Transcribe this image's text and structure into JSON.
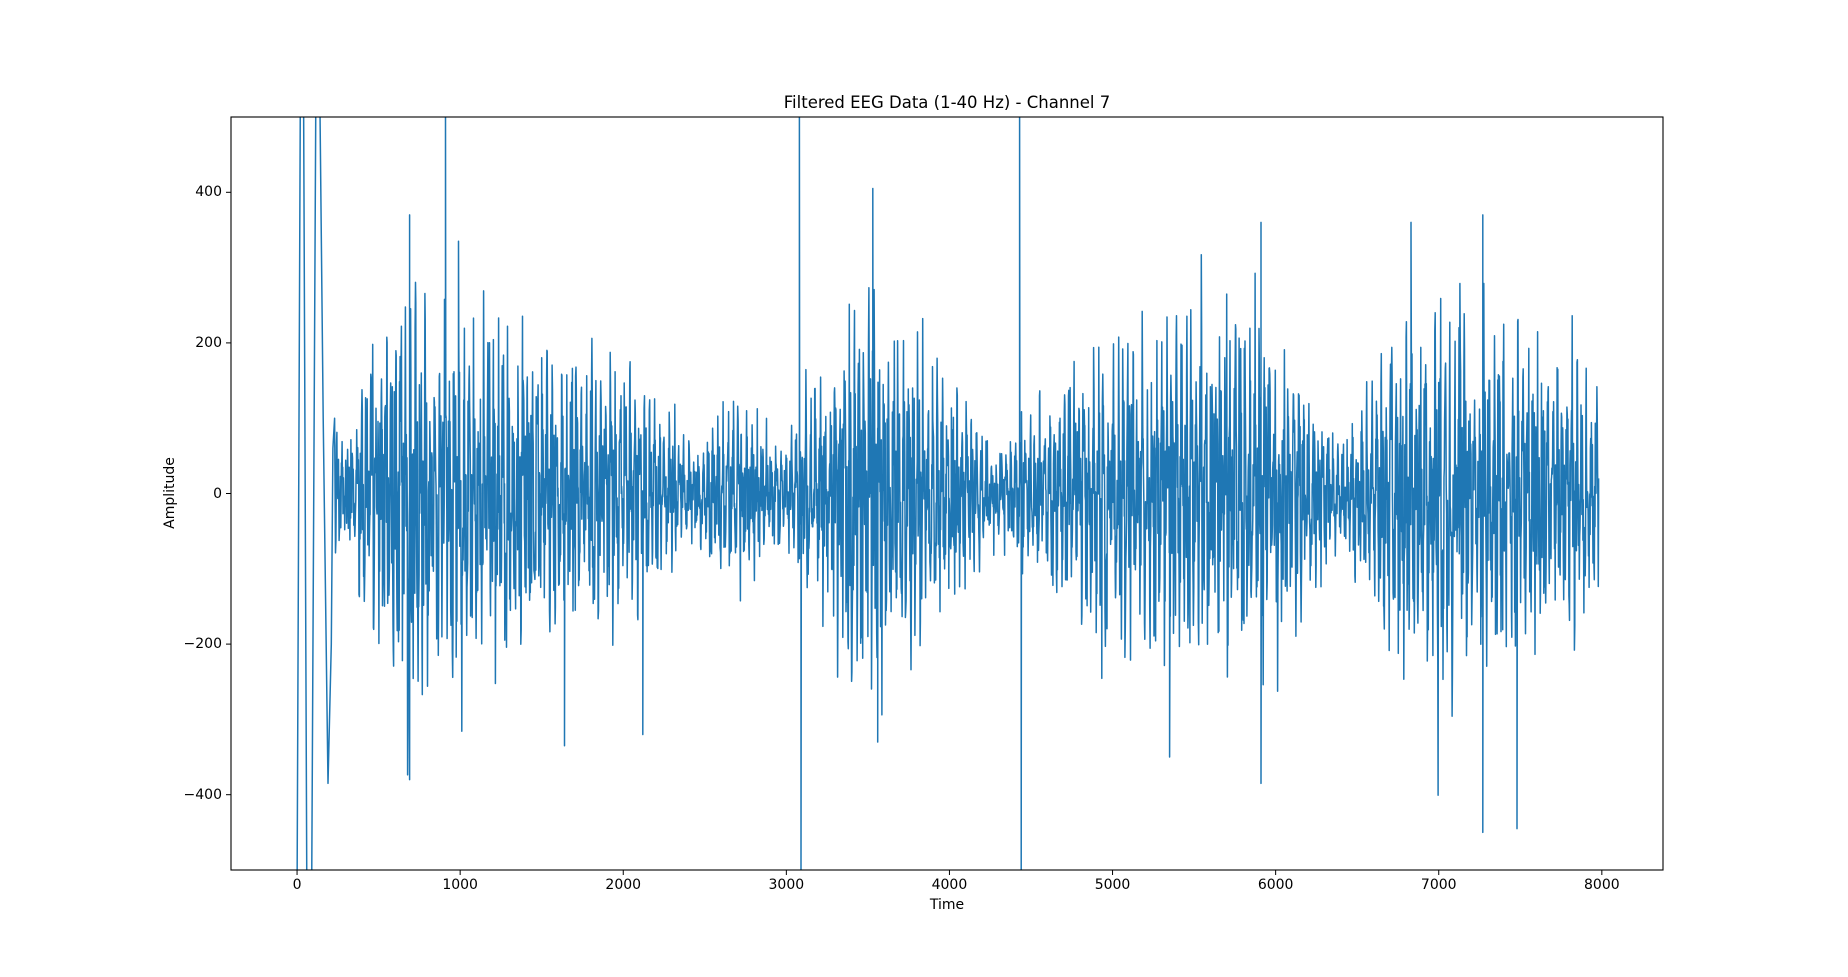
{
  "chart_data": {
    "type": "line",
    "title": "Filtered EEG Data (1-40 Hz) - Channel 7",
    "xlabel": "Time",
    "ylabel": "Amplitude",
    "xlim": [
      -405,
      8375
    ],
    "ylim": [
      -500,
      500
    ],
    "grid": false,
    "legend": null,
    "x_ticks": [
      0,
      1000,
      2000,
      3000,
      4000,
      5000,
      6000,
      7000,
      8000
    ],
    "x_tick_labels": [
      "0",
      "1000",
      "2000",
      "3000",
      "4000",
      "5000",
      "6000",
      "7000",
      "8000"
    ],
    "y_ticks": [
      400,
      200,
      0,
      -200,
      -400
    ],
    "y_tick_labels": [
      "400",
      "200",
      "0",
      "−200",
      "−400"
    ],
    "series": [
      {
        "name": "Channel 7",
        "color": "#1f77b4",
        "x_range": [
          0,
          7980
        ],
        "n_samples": 7980,
        "description": "Band-pass filtered EEG signal, dense oscillation mostly within about ±250, with bursts of higher amplitude",
        "typical_envelope": [
          {
            "x": 300,
            "amp": 80
          },
          {
            "x": 700,
            "amp": 280
          },
          {
            "x": 1000,
            "amp": 220
          },
          {
            "x": 1500,
            "amp": 180
          },
          {
            "x": 2000,
            "amp": 170
          },
          {
            "x": 2400,
            "amp": 60
          },
          {
            "x": 2700,
            "amp": 130
          },
          {
            "x": 3000,
            "amp": 60
          },
          {
            "x": 3400,
            "amp": 250
          },
          {
            "x": 3800,
            "amp": 200
          },
          {
            "x": 4300,
            "amp": 60
          },
          {
            "x": 4700,
            "amp": 150
          },
          {
            "x": 5200,
            "amp": 200
          },
          {
            "x": 5600,
            "amp": 230
          },
          {
            "x": 6000,
            "amp": 200
          },
          {
            "x": 6400,
            "amp": 60
          },
          {
            "x": 6800,
            "amp": 230
          },
          {
            "x": 7300,
            "amp": 230
          },
          {
            "x": 7980,
            "amp": 150
          }
        ],
        "notable_points": [
          {
            "x": 0,
            "y": -500,
            "note": "filter edge transient, clipped"
          },
          {
            "x": 40,
            "y": 500,
            "note": "filter edge transient, clipped"
          },
          {
            "x": 90,
            "y": -500,
            "note": "filter edge transient, clipped"
          },
          {
            "x": 140,
            "y": 500,
            "note": "filter edge transient, clipped"
          },
          {
            "x": 190,
            "y": -385
          },
          {
            "x": 690,
            "y": 370
          },
          {
            "x": 690,
            "y": -380
          },
          {
            "x": 910,
            "y": 500,
            "note": "spike, clipped"
          },
          {
            "x": 990,
            "y": 335
          },
          {
            "x": 1640,
            "y": -335
          },
          {
            "x": 2120,
            "y": -320
          },
          {
            "x": 3080,
            "y": 500,
            "note": "spike, clipped"
          },
          {
            "x": 3090,
            "y": -500,
            "note": "spike, clipped"
          },
          {
            "x": 3530,
            "y": 405
          },
          {
            "x": 3560,
            "y": -330
          },
          {
            "x": 4430,
            "y": 500,
            "note": "spike, clipped"
          },
          {
            "x": 4440,
            "y": -500,
            "note": "spike, clipped"
          },
          {
            "x": 5350,
            "y": -350
          },
          {
            "x": 5910,
            "y": 360
          },
          {
            "x": 5910,
            "y": -385
          },
          {
            "x": 6830,
            "y": 360
          },
          {
            "x": 7270,
            "y": 370
          },
          {
            "x": 7270,
            "y": -450
          },
          {
            "x": 7480,
            "y": -445
          },
          {
            "x": 7980,
            "y": 20
          }
        ]
      }
    ]
  }
}
